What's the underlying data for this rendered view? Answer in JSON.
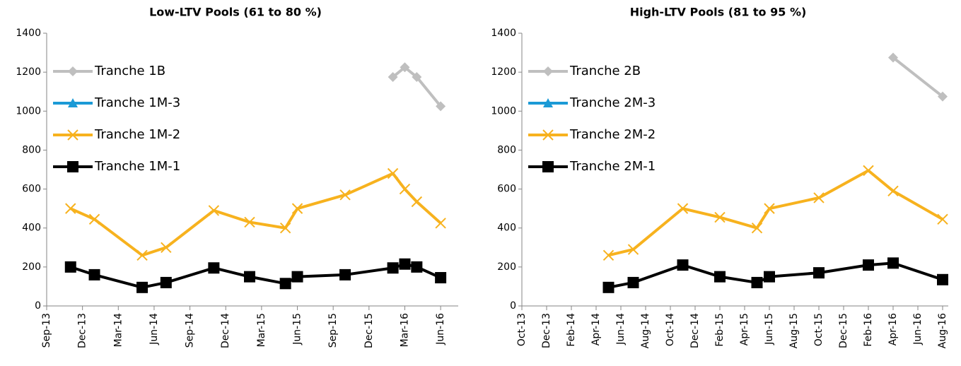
{
  "chart_data": [
    {
      "type": "line",
      "title": "Low-LTV Pools (61 to 80 %)",
      "x": [
        "Nov-13",
        "Jan-14",
        "May-14",
        "Jul-14",
        "Nov-14",
        "Feb-15",
        "May-15",
        "Jun-15",
        "Oct-15",
        "Feb-16",
        "Mar-16",
        "Apr-16",
        "Jun-16"
      ],
      "series": [
        {
          "name": "Tranche 1B",
          "color": "#bfbfbf",
          "marker": "diamond",
          "values": [
            null,
            null,
            null,
            null,
            null,
            null,
            null,
            null,
            null,
            1175,
            1225,
            1175,
            1025
          ]
        },
        {
          "name": "Tranche 1M-3",
          "color": "#1b9ad6",
          "marker": "triangle",
          "values": [
            null,
            null,
            null,
            null,
            null,
            null,
            null,
            null,
            null,
            null,
            null,
            null,
            null
          ]
        },
        {
          "name": "Tranche 1M-2",
          "color": "#f7b21e",
          "marker": "x",
          "values": [
            500,
            445,
            260,
            300,
            490,
            430,
            400,
            500,
            570,
            680,
            600,
            535,
            425
          ]
        },
        {
          "name": "Tranche 1M-1",
          "color": "#000000",
          "marker": "square",
          "values": [
            200,
            160,
            95,
            120,
            195,
            150,
            115,
            150,
            160,
            195,
            215,
            200,
            145
          ]
        }
      ],
      "xlim": [
        "Sep-13",
        "Jul-16"
      ],
      "xticks": [
        "Sep-13",
        "Dec-13",
        "Mar-14",
        "Jun-14",
        "Sep-14",
        "Dec-14",
        "Mar-15",
        "Jun-15",
        "Sep-15",
        "Dec-15",
        "Mar-16",
        "Jun-16"
      ],
      "ylim": [
        0,
        1400
      ],
      "yticks": [
        0,
        200,
        400,
        600,
        800,
        1000,
        1200,
        1400
      ],
      "grid": false,
      "legend": "upper left"
    },
    {
      "type": "line",
      "title": "High-LTV Pools (81 to 95 %)",
      "x": [
        "May-14",
        "Jul-14",
        "Nov-14",
        "Feb-15",
        "May-15",
        "Jun-15",
        "Oct-15",
        "Feb-16",
        "Apr-16",
        "Aug-16"
      ],
      "series": [
        {
          "name": "Tranche 2B",
          "color": "#bfbfbf",
          "marker": "diamond",
          "values": [
            null,
            null,
            null,
            null,
            null,
            null,
            null,
            null,
            1275,
            1075
          ]
        },
        {
          "name": "Tranche 2M-3",
          "color": "#1b9ad6",
          "marker": "triangle",
          "values": [
            null,
            null,
            null,
            null,
            null,
            null,
            null,
            null,
            null,
            null
          ]
        },
        {
          "name": "Tranche 2M-2",
          "color": "#f7b21e",
          "marker": "x",
          "values": [
            260,
            290,
            500,
            455,
            400,
            500,
            555,
            695,
            590,
            445
          ]
        },
        {
          "name": "Tranche 2M-1",
          "color": "#000000",
          "marker": "square",
          "values": [
            95,
            120,
            210,
            150,
            120,
            150,
            170,
            210,
            220,
            135
          ]
        }
      ],
      "xlim": [
        "Oct-13",
        "Aug-16"
      ],
      "xticks": [
        "Oct-13",
        "Dec-13",
        "Feb-14",
        "Apr-14",
        "Jun-14",
        "Aug-14",
        "Oct-14",
        "Dec-14",
        "Feb-15",
        "Apr-15",
        "Jun-15",
        "Aug-15",
        "Oct-15",
        "Dec-15",
        "Feb-16",
        "Apr-16",
        "Jun-16",
        "Aug-16"
      ],
      "ylim": [
        0,
        1400
      ],
      "yticks": [
        0,
        200,
        400,
        600,
        800,
        1000,
        1200,
        1400
      ],
      "grid": false,
      "legend": "upper left"
    }
  ]
}
